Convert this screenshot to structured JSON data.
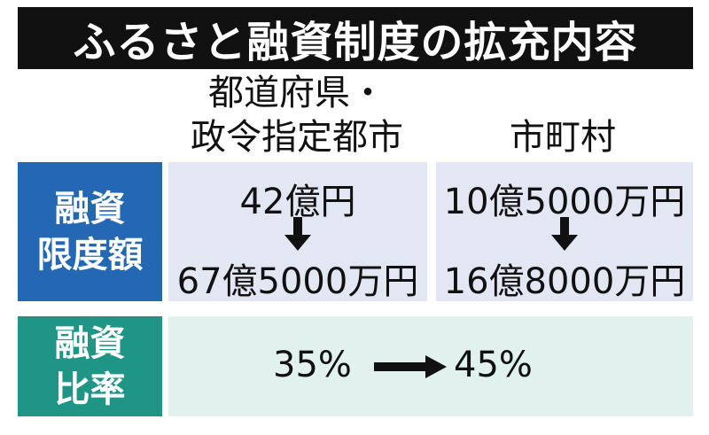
{
  "header": {
    "title": "ふるさと融資制度の拡充内容"
  },
  "table": {
    "columns": [
      [
        "都道府県・",
        "政令指定都市"
      ],
      [
        "市町村"
      ]
    ],
    "rows": [
      {
        "label": [
          "融資",
          "限度額"
        ],
        "cells": [
          {
            "before": "42億円",
            "after": "67億5000万円"
          },
          {
            "before": "10億5000万円",
            "after": "16億8000万円"
          }
        ]
      },
      {
        "label": [
          "融資",
          "比率"
        ],
        "before": "35%",
        "after": "45%"
      }
    ]
  }
}
